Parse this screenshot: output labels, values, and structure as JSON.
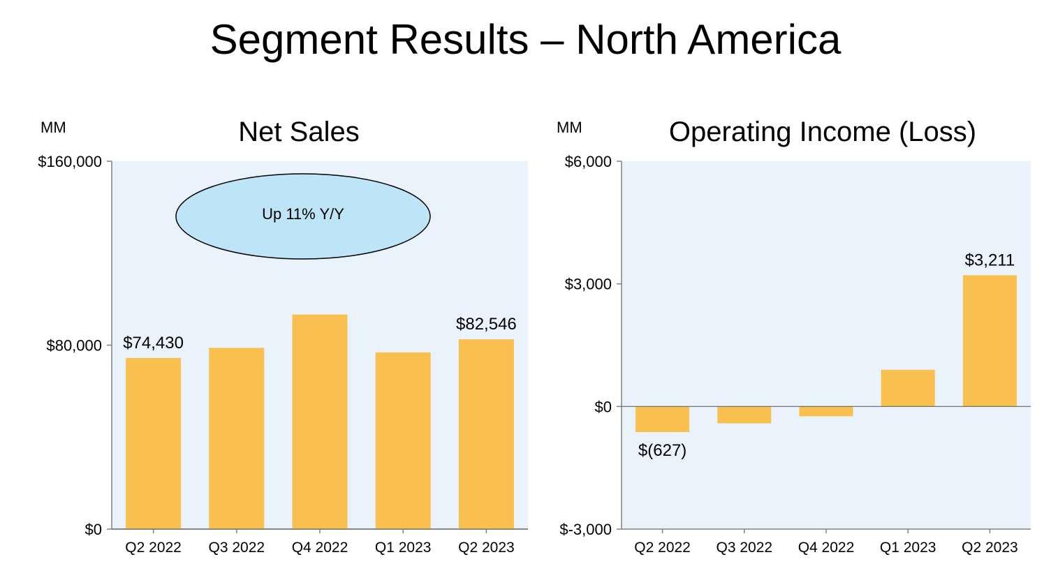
{
  "slide": {
    "title": "Segment Results – North America"
  },
  "colors": {
    "bar": "#F9BF4F",
    "plot_bg": "#EAF2FC",
    "annotation_fill": "#BDE4F7",
    "axis": "#808080"
  },
  "chart_data": [
    {
      "type": "bar",
      "title": "Net Sales",
      "unit_label": "MM",
      "categories": [
        "Q2 2022",
        "Q3 2022",
        "Q4 2022",
        "Q1 2023",
        "Q2 2023"
      ],
      "values": [
        74430,
        78843,
        93319,
        76881,
        82546
      ],
      "ylim": [
        0,
        160000
      ],
      "yticks": [
        0,
        80000,
        160000
      ],
      "ytick_labels": [
        "$0",
        "$80,000",
        "$160,000"
      ],
      "data_labels": [
        {
          "index": 0,
          "text": "$74,430"
        },
        {
          "index": 4,
          "text": "$82,546"
        }
      ],
      "annotation": "Up 11% Y/Y"
    },
    {
      "type": "bar",
      "title": "Operating Income (Loss)",
      "unit_label": "MM",
      "categories": [
        "Q2 2022",
        "Q3 2022",
        "Q4 2022",
        "Q1 2023",
        "Q2 2023"
      ],
      "values": [
        -627,
        -412,
        -240,
        898,
        3211
      ],
      "ylim": [
        -3000,
        6000
      ],
      "yticks": [
        -3000,
        0,
        3000,
        6000
      ],
      "ytick_labels": [
        "$-3,000",
        "$0",
        "$3,000",
        "$6,000"
      ],
      "data_labels": [
        {
          "index": 0,
          "text": "$(627)"
        },
        {
          "index": 4,
          "text": "$3,211"
        }
      ]
    }
  ]
}
